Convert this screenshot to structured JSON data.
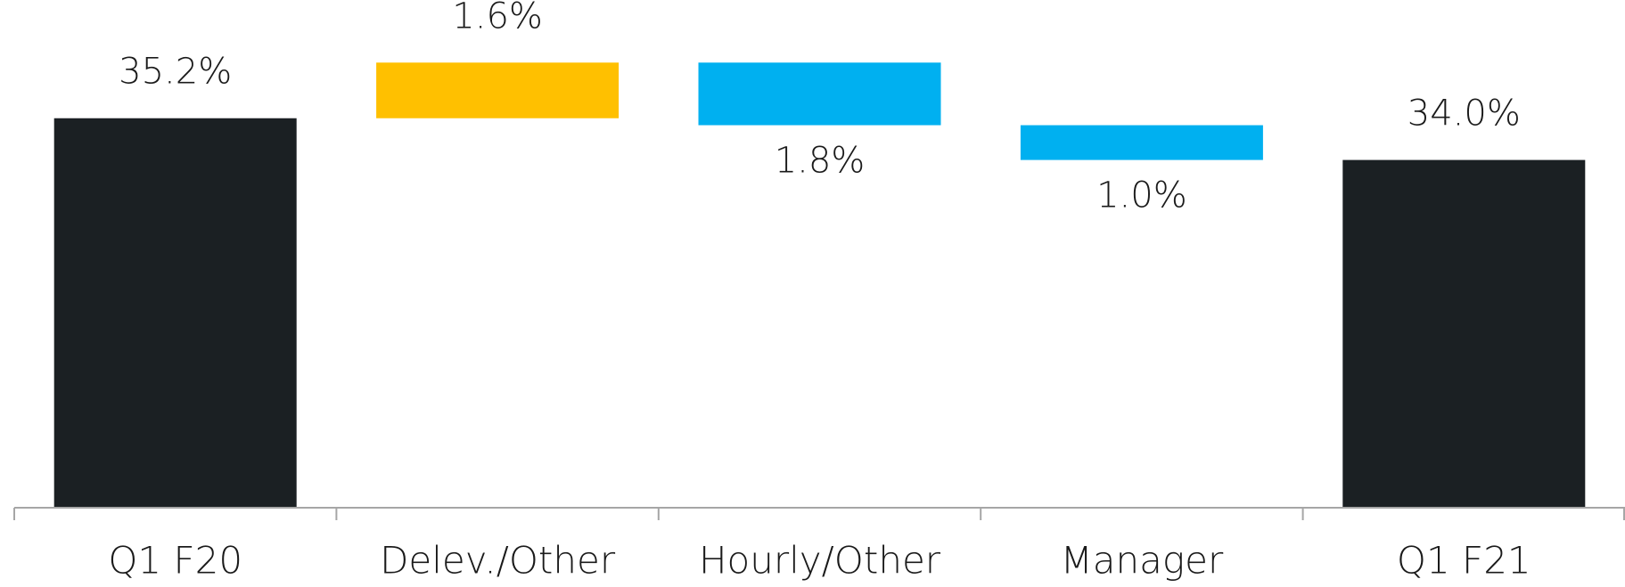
{
  "chart_data": {
    "type": "waterfall",
    "categories": [
      "Q1 F20",
      "Delev./Other",
      "Hourly/Other",
      "Manager",
      "Q1 F21"
    ],
    "values": [
      35.2,
      1.6,
      1.8,
      1.0,
      34.0
    ],
    "value_labels": [
      "35.2%",
      "1.6%",
      "1.8%",
      "1.0%",
      "34.0%"
    ],
    "measures": [
      "total",
      "increase",
      "decrease",
      "decrease",
      "total"
    ],
    "colors": {
      "total": "#1b2023",
      "increase": "#ffc000",
      "decrease": "#00b0f0"
    },
    "ylim": [
      24,
      38.6
    ]
  }
}
